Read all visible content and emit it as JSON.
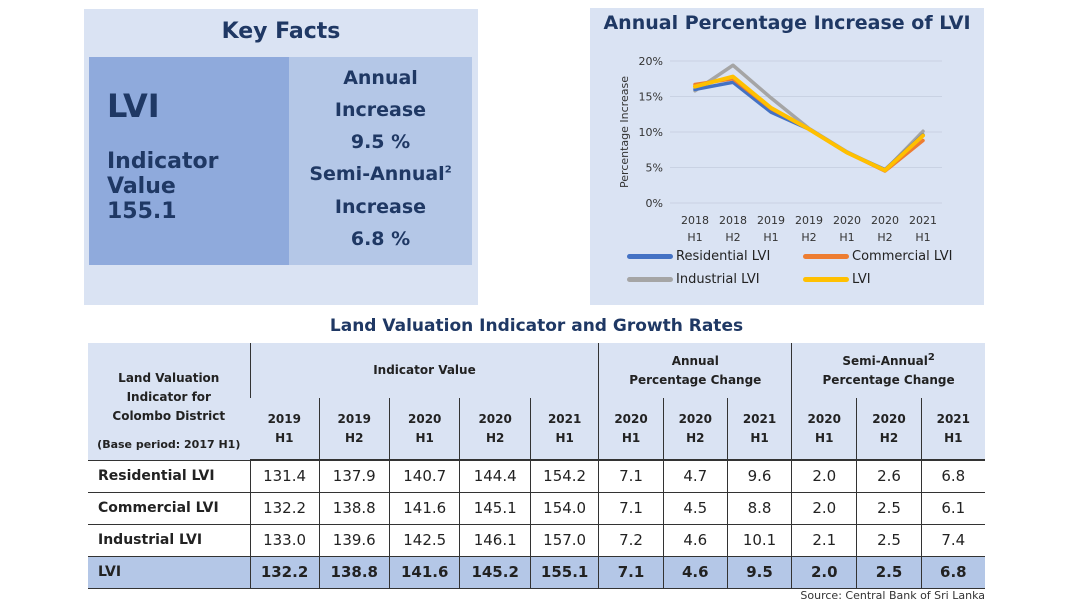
{
  "key_facts": {
    "title": "Key Facts",
    "lvi_label": "LVI",
    "indicator_label": "Indicator Value",
    "indicator_value": "155.1",
    "annual_label_1": "Annual",
    "annual_label_2": "Increase",
    "annual_value": "9.5 %",
    "semi_label_1": "Semi-Annual",
    "semi_sup": "2",
    "semi_label_2": "Increase",
    "semi_value": "6.8 %"
  },
  "chart_data": {
    "type": "line",
    "title": "Annual Percentage Increase of LVI",
    "xlabel": "",
    "ylabel": "Percentage Increase",
    "categories": [
      [
        "2018",
        "H1"
      ],
      [
        "2018",
        "H2"
      ],
      [
        "2019",
        "H1"
      ],
      [
        "2019",
        "H2"
      ],
      [
        "2020",
        "H1"
      ],
      [
        "2020",
        "H2"
      ],
      [
        "2021",
        "H1"
      ]
    ],
    "yticks": [
      "0%",
      "5%",
      "10%",
      "15%",
      "20%"
    ],
    "ylim": [
      0,
      20
    ],
    "grid": true,
    "legend_position": "bottom",
    "series": [
      {
        "name": "Residential LVI",
        "color": "#4472c4",
        "values": [
          16.0,
          17.0,
          12.8,
          10.4,
          7.1,
          4.7,
          9.6
        ]
      },
      {
        "name": "Commercial LVI",
        "color": "#ed7d31",
        "values": [
          16.7,
          17.5,
          13.3,
          10.4,
          7.1,
          4.5,
          8.8
        ]
      },
      {
        "name": "Industrial LVI",
        "color": "#a5a5a5",
        "values": [
          15.8,
          19.4,
          14.8,
          10.5,
          7.2,
          4.6,
          10.1
        ]
      },
      {
        "name": "LVI",
        "color": "#ffc000",
        "values": [
          16.4,
          17.8,
          13.4,
          10.4,
          7.1,
          4.6,
          9.5
        ]
      }
    ]
  },
  "table": {
    "title": "Land Valuation Indicator and Growth Rates",
    "corner_lines": [
      "Land Valuation",
      "Indicator for",
      "Colombo District"
    ],
    "base_period": "(Base period: 2017 H1)",
    "groups": [
      {
        "label_1": "Indicator Value",
        "label_2": "",
        "sup": ""
      },
      {
        "label_1": "Annual",
        "label_2": "Percentage Change",
        "sup": ""
      },
      {
        "label_1": "Semi-Annual",
        "label_2": "Percentage Change",
        "sup": "2"
      }
    ],
    "subcols": [
      [
        "2019",
        "H1"
      ],
      [
        "2019",
        "H2"
      ],
      [
        "2020",
        "H1"
      ],
      [
        "2020",
        "H2"
      ],
      [
        "2021",
        "H1"
      ],
      [
        "2020",
        "H1"
      ],
      [
        "2020",
        "H2"
      ],
      [
        "2021",
        "H1"
      ],
      [
        "2020",
        "H1"
      ],
      [
        "2020",
        "H2"
      ],
      [
        "2021",
        "H1"
      ]
    ],
    "rows": [
      {
        "label": "Residential LVI",
        "values": [
          "131.4",
          "137.9",
          "140.7",
          "144.4",
          "154.2",
          "7.1",
          "4.7",
          "9.6",
          "2.0",
          "2.6",
          "6.8"
        ]
      },
      {
        "label": "Commercial LVI",
        "values": [
          "132.2",
          "138.8",
          "141.6",
          "145.1",
          "154.0",
          "7.1",
          "4.5",
          "8.8",
          "2.0",
          "2.5",
          "6.1"
        ]
      },
      {
        "label": "Industrial LVI",
        "values": [
          "133.0",
          "139.6",
          "142.5",
          "146.1",
          "157.0",
          "7.2",
          "4.6",
          "10.1",
          "2.1",
          "2.5",
          "7.4"
        ]
      },
      {
        "label": "LVI",
        "values": [
          "132.2",
          "138.8",
          "141.6",
          "145.2",
          "155.1",
          "7.1",
          "4.6",
          "9.5",
          "2.0",
          "2.5",
          "6.8"
        ]
      }
    ],
    "source": "Source: Central Bank of Sri Lanka"
  }
}
